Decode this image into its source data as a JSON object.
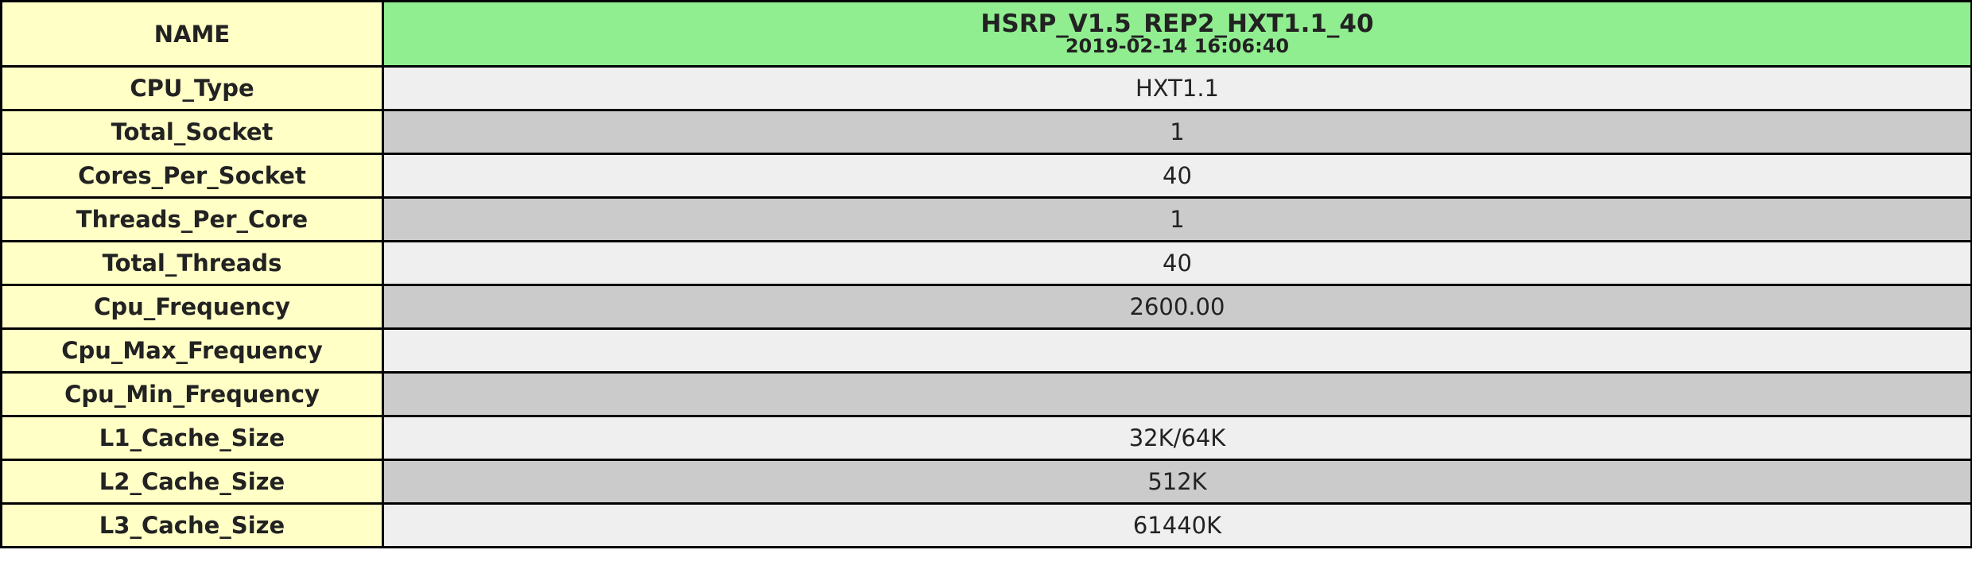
{
  "header": {
    "name_label": "NAME",
    "system_name": "HSRP_V1.5_REP2_HXT1.1_40",
    "timestamp": "2019-02-14 16:06:40"
  },
  "rows": [
    {
      "label": "CPU_Type",
      "value": "HXT1.1"
    },
    {
      "label": "Total_Socket",
      "value": "1"
    },
    {
      "label": "Cores_Per_Socket",
      "value": "40"
    },
    {
      "label": "Threads_Per_Core",
      "value": "1"
    },
    {
      "label": "Total_Threads",
      "value": "40"
    },
    {
      "label": "Cpu_Frequency",
      "value": "2600.00"
    },
    {
      "label": "Cpu_Max_Frequency",
      "value": ""
    },
    {
      "label": "Cpu_Min_Frequency",
      "value": ""
    },
    {
      "label": "L1_Cache_Size",
      "value": "32K/64K"
    },
    {
      "label": "L2_Cache_Size",
      "value": "512K"
    },
    {
      "label": "L3_Cache_Size",
      "value": "61440K"
    }
  ],
  "colors": {
    "label_bg": "#ffffc6",
    "header_bg": "#90ee90",
    "row_light_bg": "#efefef",
    "row_dark_bg": "#cbcbcb",
    "border": "#000000"
  }
}
